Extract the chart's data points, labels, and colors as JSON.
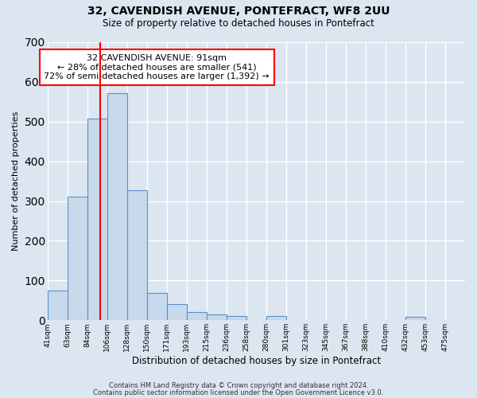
{
  "title": "32, CAVENDISH AVENUE, PONTEFRACT, WF8 2UU",
  "subtitle": "Size of property relative to detached houses in Pontefract",
  "xlabel": "Distribution of detached houses by size in Pontefract",
  "ylabel": "Number of detached properties",
  "tick_labels": [
    "41sqm",
    "63sqm",
    "84sqm",
    "106sqm",
    "128sqm",
    "150sqm",
    "171sqm",
    "193sqm",
    "215sqm",
    "236sqm",
    "258sqm",
    "280sqm",
    "301sqm",
    "323sqm",
    "345sqm",
    "367sqm",
    "388sqm",
    "410sqm",
    "432sqm",
    "453sqm",
    "475sqm"
  ],
  "bar_heights": [
    75,
    312,
    507,
    572,
    328,
    68,
    40,
    20,
    15,
    10,
    0,
    10,
    0,
    0,
    0,
    0,
    0,
    0,
    8,
    0,
    0
  ],
  "bar_color": "#c9d9ec",
  "bar_edge_color": "#5b8fc9",
  "vline_x_bin": 2.65,
  "vline_color": "red",
  "ylim": [
    0,
    700
  ],
  "yticks": [
    0,
    100,
    200,
    300,
    400,
    500,
    600,
    700
  ],
  "annotation_title": "32 CAVENDISH AVENUE: 91sqm",
  "annotation_line1": "← 28% of detached houses are smaller (541)",
  "annotation_line2": "72% of semi-detached houses are larger (1,392) →",
  "annotation_box_color": "#ffffff",
  "annotation_box_edge": "red",
  "footer1": "Contains HM Land Registry data © Crown copyright and database right 2024.",
  "footer2": "Contains public sector information licensed under the Open Government Licence v3.0.",
  "bg_color": "#dce6f0",
  "plot_bg_color": "#dce6f0",
  "grid_color": "#ffffff"
}
